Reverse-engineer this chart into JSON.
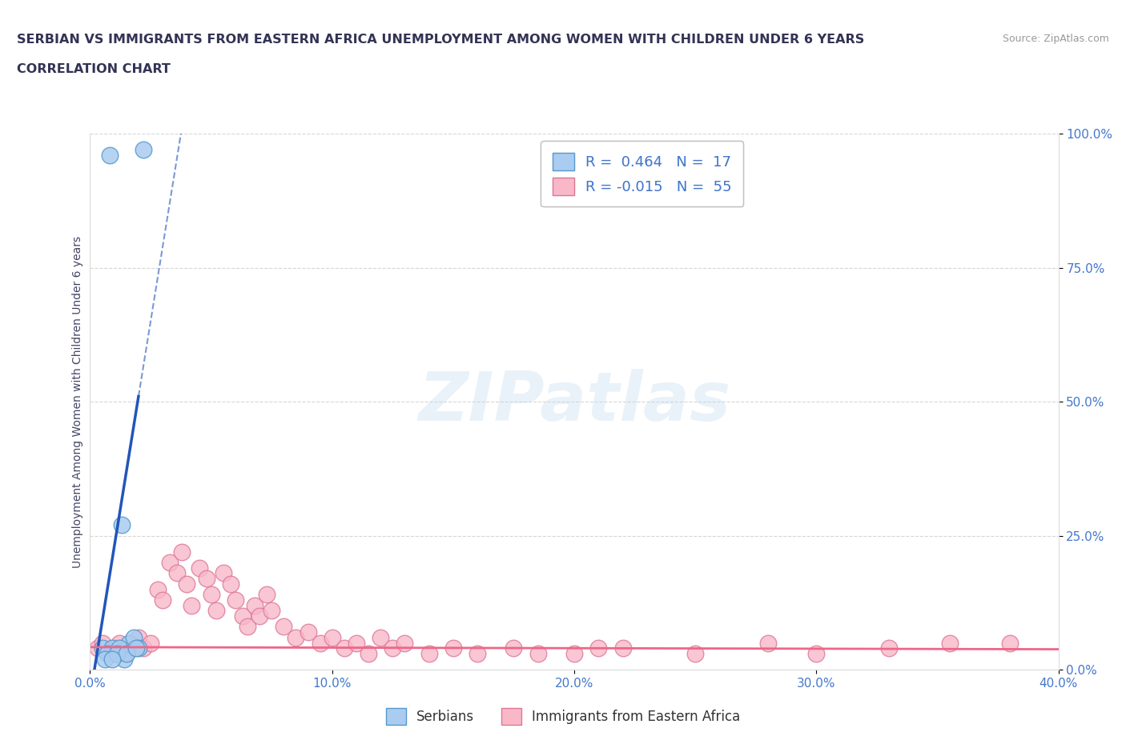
{
  "title_line1": "SERBIAN VS IMMIGRANTS FROM EASTERN AFRICA UNEMPLOYMENT AMONG WOMEN WITH CHILDREN UNDER 6 YEARS",
  "title_line2": "CORRELATION CHART",
  "source": "Source: ZipAtlas.com",
  "ylabel": "Unemployment Among Women with Children Under 6 years",
  "xlim": [
    0.0,
    0.4
  ],
  "ylim": [
    0.0,
    1.0
  ],
  "xticks": [
    0.0,
    0.1,
    0.2,
    0.3,
    0.4
  ],
  "xtick_labels": [
    "0.0%",
    "10.0%",
    "20.0%",
    "30.0%",
    "40.0%"
  ],
  "yticks": [
    0.0,
    0.25,
    0.5,
    0.75,
    1.0
  ],
  "ytick_labels": [
    "0.0%",
    "25.0%",
    "50.0%",
    "75.0%",
    "100.0%"
  ],
  "watermark": "ZIPatlas",
  "serbian_color": "#aaccf0",
  "serbian_edge": "#5599cc",
  "immigrant_color": "#f8b8c8",
  "immigrant_edge": "#dd7799",
  "regression_serbian_color": "#2255bb",
  "regression_immigrant_color": "#ee6688",
  "legend_r_serbian": "0.464",
  "legend_n_serbian": "17",
  "legend_r_immigrant": "-0.015",
  "legend_n_immigrant": "55",
  "serbian_x": [
    0.008,
    0.022,
    0.005,
    0.01,
    0.014,
    0.009,
    0.016,
    0.007,
    0.012,
    0.018,
    0.006,
    0.011,
    0.013,
    0.02,
    0.015,
    0.009,
    0.019
  ],
  "serbian_y": [
    0.96,
    0.97,
    0.04,
    0.03,
    0.02,
    0.04,
    0.05,
    0.03,
    0.04,
    0.06,
    0.02,
    0.03,
    0.27,
    0.04,
    0.03,
    0.02,
    0.04
  ],
  "immigrant_x": [
    0.003,
    0.005,
    0.008,
    0.01,
    0.012,
    0.015,
    0.018,
    0.02,
    0.022,
    0.025,
    0.028,
    0.03,
    0.033,
    0.036,
    0.038,
    0.04,
    0.042,
    0.045,
    0.048,
    0.05,
    0.052,
    0.055,
    0.058,
    0.06,
    0.063,
    0.065,
    0.068,
    0.07,
    0.073,
    0.075,
    0.08,
    0.085,
    0.09,
    0.095,
    0.1,
    0.105,
    0.11,
    0.115,
    0.12,
    0.125,
    0.13,
    0.14,
    0.15,
    0.16,
    0.175,
    0.185,
    0.2,
    0.21,
    0.22,
    0.25,
    0.28,
    0.3,
    0.33,
    0.355,
    0.38
  ],
  "immigrant_y": [
    0.04,
    0.05,
    0.03,
    0.04,
    0.05,
    0.03,
    0.04,
    0.06,
    0.04,
    0.05,
    0.15,
    0.13,
    0.2,
    0.18,
    0.22,
    0.16,
    0.12,
    0.19,
    0.17,
    0.14,
    0.11,
    0.18,
    0.16,
    0.13,
    0.1,
    0.08,
    0.12,
    0.1,
    0.14,
    0.11,
    0.08,
    0.06,
    0.07,
    0.05,
    0.06,
    0.04,
    0.05,
    0.03,
    0.06,
    0.04,
    0.05,
    0.03,
    0.04,
    0.03,
    0.04,
    0.03,
    0.03,
    0.04,
    0.04,
    0.03,
    0.05,
    0.03,
    0.04,
    0.05,
    0.05
  ],
  "background_color": "#ffffff",
  "grid_color": "#cccccc",
  "title_color": "#333355",
  "axis_label_color": "#444466",
  "tick_color": "#4477cc",
  "legend_text_color": "#4477cc"
}
